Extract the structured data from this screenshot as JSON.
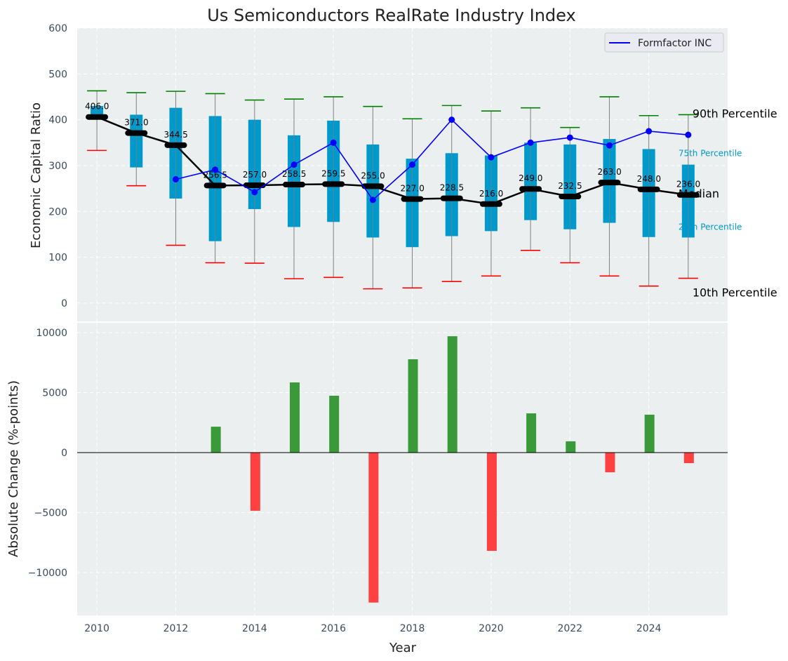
{
  "chart_data": [
    {
      "type": "box",
      "title": "Us Semiconductors RealRate Industry Index",
      "xlabel": "Year",
      "ylabel": "Economic Capital Ratio",
      "ylim": [
        -40,
        600
      ],
      "yticks": [
        0,
        100,
        200,
        300,
        400,
        500,
        600
      ],
      "grid": true,
      "legend": {
        "position": "top-right",
        "entries": [
          "Formfactor INC"
        ]
      },
      "colors": {
        "box": "#0099cc",
        "median": "#000000",
        "p90": "#008000",
        "p10": "#ff0000",
        "line": "#0000ff",
        "whisker": "#808080",
        "bg": "#eceff0"
      },
      "x": [
        2010,
        2011,
        2012,
        2013,
        2014,
        2015,
        2016,
        2017,
        2018,
        2019,
        2020,
        2021,
        2022,
        2023,
        2024,
        2025
      ],
      "p10": [
        333,
        256,
        126,
        88,
        87,
        53,
        56,
        31,
        33,
        47,
        59,
        115,
        88,
        59,
        37,
        54
      ],
      "p25": [
        405,
        296,
        228,
        135,
        205,
        166,
        177,
        143,
        122,
        146,
        157,
        181,
        161,
        175,
        144,
        143
      ],
      "median": [
        406.0,
        371.0,
        344.5,
        256.5,
        257.0,
        258.5,
        259.5,
        255.0,
        227.0,
        228.5,
        216.0,
        249.0,
        232.5,
        263.0,
        248.0,
        236.0
      ],
      "median_labels": [
        "406.0",
        "371.0",
        "344.5",
        "256.5",
        "257.0",
        "258.5",
        "259.5",
        "255.0",
        "227.0",
        "228.5",
        "216.0",
        "249.0",
        "232.5",
        "263.0",
        "248.0",
        "236.0"
      ],
      "p75": [
        430,
        411,
        426,
        408,
        400,
        366,
        398,
        346,
        315,
        327,
        322,
        350,
        346,
        358,
        336,
        302
      ],
      "p90": [
        463,
        459,
        462,
        457,
        443,
        445,
        450,
        429,
        402,
        431,
        419,
        426,
        383,
        450,
        409,
        411
      ],
      "series": [
        {
          "name": "Formfactor INC",
          "values": [
            null,
            null,
            270,
            291,
            242,
            302,
            350,
            225,
            302,
            400,
            318,
            350,
            361,
            344,
            375,
            367
          ]
        }
      ],
      "annotations": {
        "p90": "90th Percentile",
        "p75": "75th Percentile",
        "median": "Median",
        "p25": "25th Percentile",
        "p10": "10th Percentile"
      }
    },
    {
      "type": "bar",
      "xlabel": "Year",
      "ylabel": "Absolute Change (%-points)",
      "ylim": [
        -13570,
        10820
      ],
      "yticks": [
        -10000,
        -5000,
        0,
        5000,
        10000
      ],
      "ytick_labels": [
        "−10000",
        "−5000",
        "0",
        "5000",
        "10000"
      ],
      "xticks": [
        2010,
        2012,
        2014,
        2016,
        2018,
        2020,
        2022,
        2024
      ],
      "xlim": [
        2009.5,
        2026
      ],
      "colors": {
        "positive": "#3a9a3a",
        "negative": "#ff4040"
      },
      "x": [
        2013,
        2014,
        2015,
        2016,
        2017,
        2018,
        2019,
        2020,
        2021,
        2022,
        2023,
        2024,
        2025
      ],
      "values": [
        2160,
        -4850,
        5850,
        4740,
        -12500,
        7780,
        9700,
        -8190,
        3270,
        940,
        -1640,
        3160,
        -880
      ]
    }
  ]
}
